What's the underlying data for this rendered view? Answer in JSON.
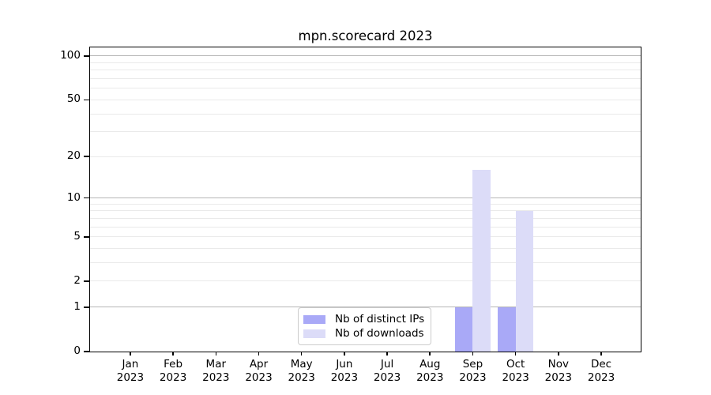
{
  "title": "mpn.scorecard 2023",
  "chart_data": {
    "type": "bar",
    "title": "mpn.scorecard 2023",
    "categories": [
      "Jan",
      "Feb",
      "Mar",
      "Apr",
      "May",
      "Jun",
      "Jul",
      "Aug",
      "Sep",
      "Oct",
      "Nov",
      "Dec"
    ],
    "category_year": "2023",
    "series": [
      {
        "name": "Nb of distinct IPs",
        "color": "#a9a9f7",
        "values": [
          0,
          0,
          0,
          0,
          0,
          0,
          0,
          0,
          1,
          1,
          0,
          0
        ]
      },
      {
        "name": "Nb of downloads",
        "color": "#dcdcf8",
        "values": [
          0,
          0,
          0,
          0,
          0,
          0,
          0,
          0,
          16,
          8,
          0,
          0
        ]
      }
    ],
    "xlabel": "",
    "ylabel": "",
    "yscale": "log1p",
    "ylim": [
      0,
      113
    ],
    "y_major_ticks": [
      0,
      1,
      2,
      5,
      10,
      20,
      50,
      100
    ],
    "y_major_gridlines": [
      1,
      10,
      100
    ],
    "y_minor_gridlines": [
      2,
      3,
      4,
      5,
      6,
      7,
      8,
      9,
      20,
      30,
      40,
      50,
      60,
      70,
      80,
      90
    ],
    "grid": true,
    "legend_position": "lower center"
  },
  "colors": {
    "spine": "#000000",
    "major_grid": "#b6b6b6",
    "minor_grid": "#eaeaea",
    "background": "#ffffff",
    "legend_border": "#cccccc"
  }
}
